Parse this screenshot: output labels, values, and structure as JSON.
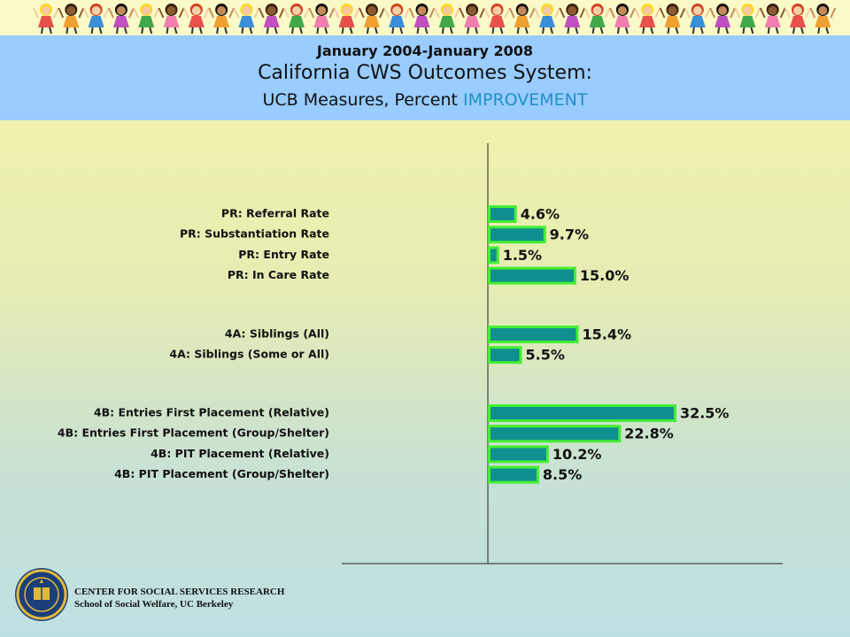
{
  "header": {
    "date_range": "January 2004-January 2008",
    "title": "California CWS Outcomes System:",
    "subtitle_prefix": "UCB Measures, Percent ",
    "subtitle_accent": "IMPROVEMENT"
  },
  "banner": {
    "icon": "dancing-children-figures"
  },
  "colors": {
    "bar_fill": "#0f8f8f",
    "bar_border": "#44ee33",
    "header_bg": "#99ccff",
    "accent": "#1e90c8"
  },
  "chart_data": {
    "type": "bar",
    "orientation": "horizontal",
    "groups": [
      {
        "categories": [
          "PR: Referral Rate",
          "PR: Substantiation Rate",
          "PR: Entry Rate",
          "PR: In Care Rate"
        ],
        "values": [
          4.6,
          9.7,
          1.5,
          15.0
        ],
        "labels": [
          "4.6%",
          "9.7%",
          "1.5%",
          "15.0%"
        ]
      },
      {
        "categories": [
          "4A: Siblings (All)",
          "4A: Siblings (Some or All)"
        ],
        "values": [
          15.4,
          5.5
        ],
        "labels": [
          "15.4%",
          "5.5%"
        ]
      },
      {
        "categories": [
          "4B: Entries First Placement (Relative)",
          "4B: Entries First Placement (Group/Shelter)",
          "4B: PIT Placement (Relative)",
          "4B: PIT Placement (Group/Shelter)"
        ],
        "values": [
          32.5,
          22.8,
          10.2,
          8.5
        ],
        "labels": [
          "32.5%",
          "22.8%",
          "10.2%",
          "8.5%"
        ]
      }
    ],
    "xlim": [
      0,
      50
    ],
    "grid": false,
    "legend": "none"
  },
  "footer": {
    "org_line1": "CENTER FOR SOCIAL SERVICES RESEARCH",
    "org_line2": "School of Social Welfare, UC Berkeley",
    "seal_icon": "uc-seal-icon"
  }
}
